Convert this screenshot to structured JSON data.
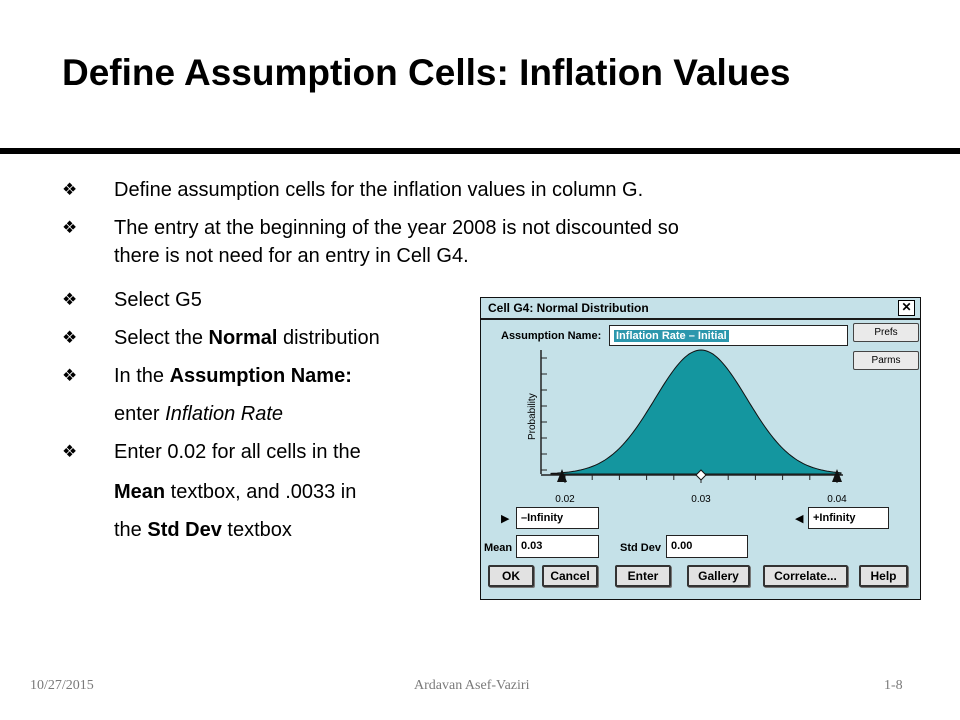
{
  "title": "Define Assumption Cells: Inflation Values",
  "bullet_glyph": "❖",
  "bullets": [
    {
      "text": "Define assumption cells for the inflation values in column G."
    },
    {
      "text": "The entry at the beginning of the year 2008 is not discounted so",
      "cont": "there is not need for an entry in Cell G4."
    },
    {
      "text": "Select G5"
    },
    {
      "pre": "Select the ",
      "bold": "Normal",
      "post": " distribution"
    },
    {
      "pre": "In the ",
      "bold": "Assumption Name:",
      "post": ""
    },
    {
      "pre": "Enter 0.02 for all cells in the",
      "bold": "",
      "post": ""
    }
  ],
  "continuation": {
    "inflation": {
      "pre": "enter ",
      "italic": "Inflation Rate"
    },
    "mean": {
      "bold": "Mean",
      "post": " textbox, and .0033 in"
    },
    "stddev": {
      "pre": "the ",
      "bold": "Std Dev",
      "post": " textbox"
    }
  },
  "dialog": {
    "title": "Cell G4: Normal Distribution",
    "close": "✕",
    "assumption_label": "Assumption Name:",
    "assumption_value": "Inflation Rate – Initial",
    "prefs": "Prefs",
    "parms": "Parms",
    "y_axis_label": "Probability",
    "x_ticks": [
      "0.02",
      "0.03",
      "0.04"
    ],
    "left_bound": "–Infinity",
    "right_bound": "+Infinity",
    "mean_label": "Mean",
    "mean_value": "0.03",
    "std_label": "Std Dev",
    "std_value": "0.00",
    "buttons": [
      "OK",
      "Cancel",
      "Enter",
      "Gallery",
      "Correlate...",
      "Help"
    ],
    "curve_color": "#14969f"
  },
  "footer": {
    "date": "10/27/2015",
    "author": "Ardavan Asef-Vaziri",
    "page": "1-8"
  }
}
